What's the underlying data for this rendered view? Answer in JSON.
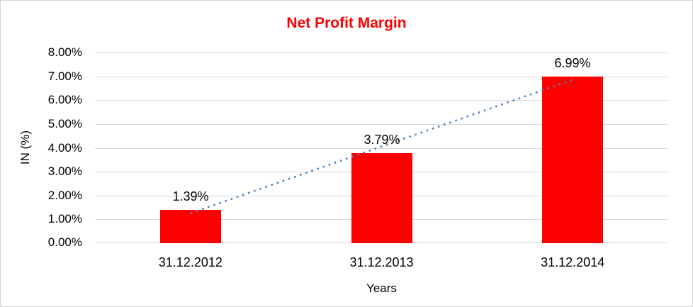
{
  "chart_data": {
    "type": "bar",
    "title": "Net Profit Margin",
    "categories": [
      "31.12.2012",
      "31.12.2013",
      "31.12.2014"
    ],
    "values": [
      1.39,
      3.79,
      6.99
    ],
    "data_labels": [
      "1.39%",
      "3.79%",
      "6.99%"
    ],
    "xlabel": "Years",
    "ylabel": "IN (%)",
    "ylim": [
      0,
      8
    ],
    "ytick_step": 1,
    "ytick_labels": [
      "0.00%",
      "1.00%",
      "2.00%",
      "3.00%",
      "4.00%",
      "5.00%",
      "6.00%",
      "7.00%",
      "8.00%"
    ],
    "grid": true,
    "legend_position": "none",
    "trendline": {
      "type": "linear",
      "style": "dotted"
    },
    "colors": {
      "bar": "#ff0000",
      "title": "#ff0000",
      "trendline": "#4f81bd",
      "gridline": "#d9d9d9",
      "text": "#000000",
      "border": "#d3d3d3"
    }
  }
}
